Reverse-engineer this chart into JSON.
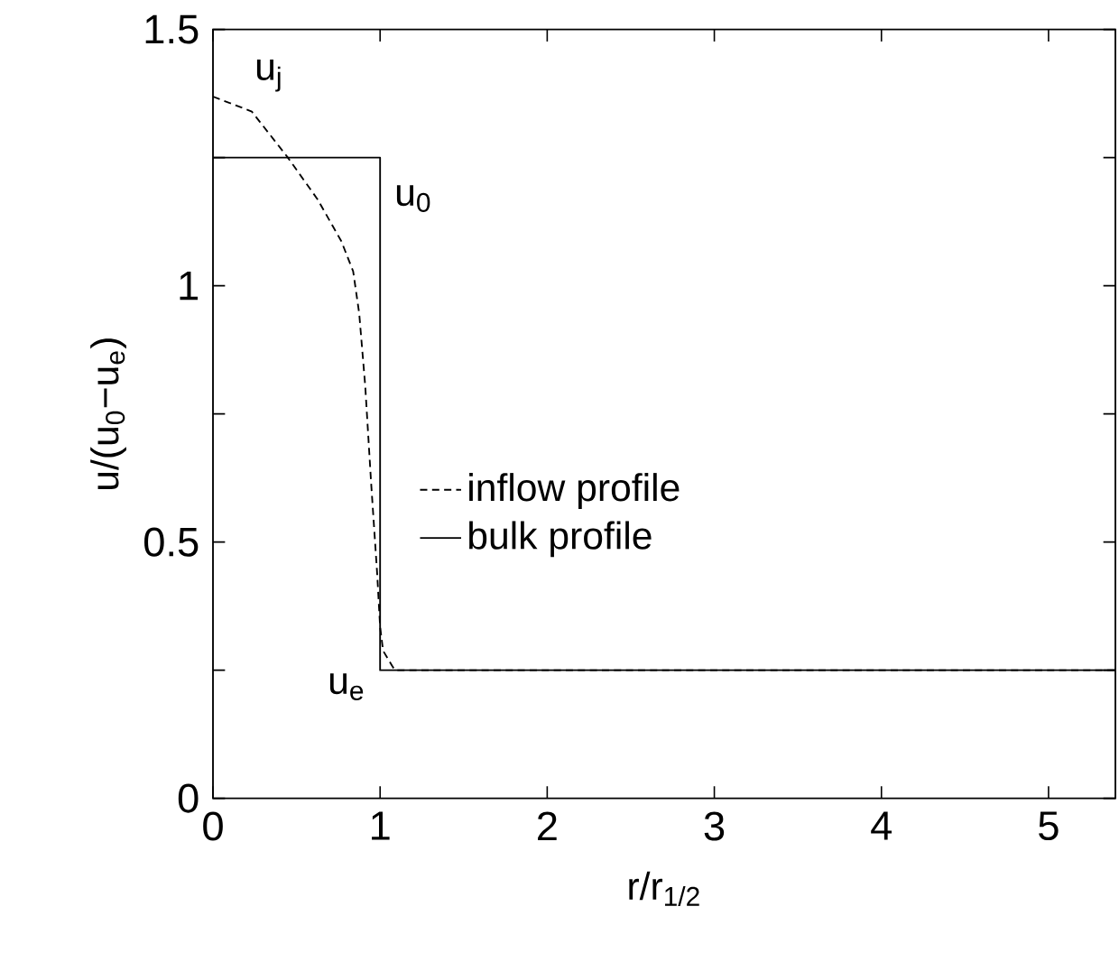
{
  "chart_data": {
    "type": "line",
    "xlabel": "r/r$_{1/2}$",
    "ylabel": "u/(u$_{0}$−u$_{e}$)",
    "xlim": [
      0,
      5.4
    ],
    "ylim": [
      0,
      1.5
    ],
    "xticks": [
      0,
      1,
      2,
      3,
      4,
      5
    ],
    "yticks": [
      0,
      {
        "value": 0.25,
        "label": null
      },
      0.5,
      {
        "value": 0.75,
        "label": null
      },
      1,
      {
        "value": 1.25,
        "label": null
      },
      1.5
    ],
    "grid": false,
    "legend": "center",
    "marker": "none",
    "series": [
      {
        "name": "inflow profile",
        "color": "#000000",
        "line_style": "dashed",
        "x": [
          0,
          0.232,
          0.446,
          0.625,
          0.768,
          0.839,
          0.875,
          0.911,
          0.946,
          0.982,
          1.0,
          1.018,
          1.071,
          1.089,
          5.4
        ],
        "values": [
          1.369,
          1.34,
          1.251,
          1.169,
          1.087,
          1.028,
          0.946,
          0.805,
          0.617,
          0.441,
          0.335,
          0.288,
          0.259,
          0.25,
          0.25
        ]
      },
      {
        "name": "bulk profile",
        "color": "#000000",
        "line_style": "solid",
        "x": [
          0,
          1,
          1,
          5.4
        ],
        "values": [
          1.25,
          1.25,
          0.25,
          0.25
        ]
      }
    ],
    "annotations": [
      "u$_{j}$",
      "u$_{0}$",
      "u$_{e}$"
    ]
  }
}
